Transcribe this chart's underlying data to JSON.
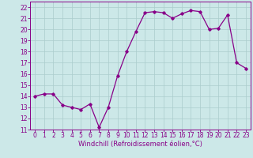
{
  "hours": [
    0,
    1,
    2,
    3,
    4,
    5,
    6,
    7,
    8,
    9,
    10,
    11,
    12,
    13,
    14,
    15,
    16,
    17,
    18,
    19,
    20,
    21,
    22,
    23
  ],
  "values": [
    14.0,
    14.2,
    14.2,
    13.2,
    13.0,
    12.8,
    13.3,
    11.2,
    13.0,
    15.8,
    18.0,
    19.8,
    21.5,
    21.6,
    21.5,
    21.0,
    21.4,
    21.7,
    21.6,
    20.0,
    20.1,
    21.3,
    17.0,
    16.5
  ],
  "line_color": "#880088",
  "marker": "D",
  "marker_size": 1.8,
  "line_width": 0.9,
  "bg_color": "#cce8e8",
  "grid_color": "#aacccc",
  "xlabel": "Windchill (Refroidissement éolien,°C)",
  "xlabel_color": "#880088",
  "xlabel_fontsize": 6.0,
  "tick_fontsize": 5.5,
  "ylim": [
    11,
    22.5
  ],
  "yticks": [
    11,
    12,
    13,
    14,
    15,
    16,
    17,
    18,
    19,
    20,
    21,
    22
  ],
  "xticks": [
    0,
    1,
    2,
    3,
    4,
    5,
    6,
    7,
    8,
    9,
    10,
    11,
    12,
    13,
    14,
    15,
    16,
    17,
    18,
    19,
    20,
    21,
    22,
    23
  ],
  "spine_color": "#880088"
}
